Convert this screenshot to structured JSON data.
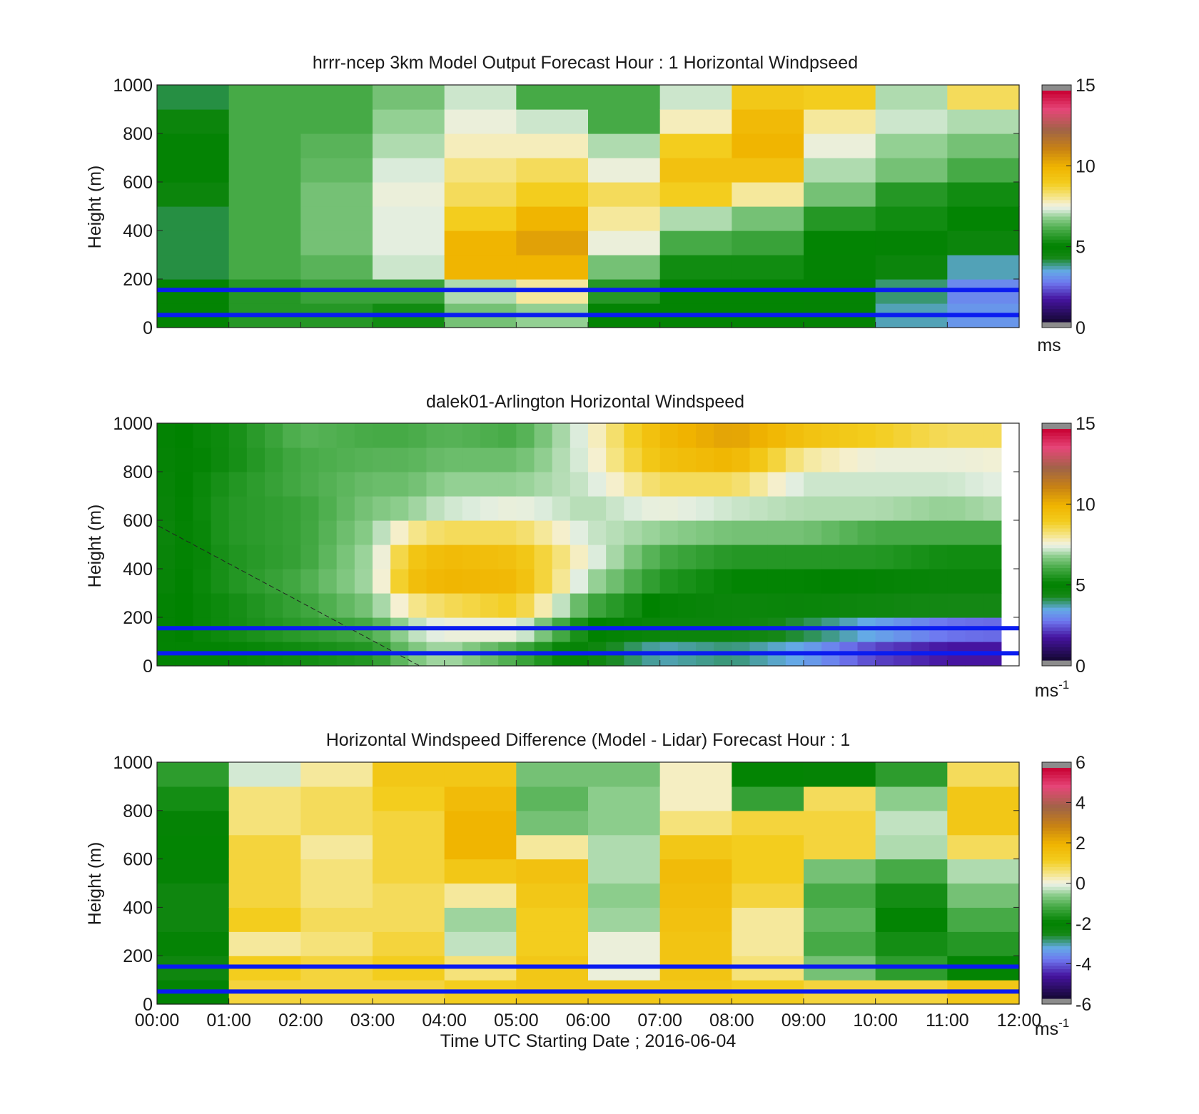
{
  "chart_data": [
    {
      "type": "heatmap",
      "title": "hrrr-ncep 3km Model Output   Forecast Hour : 1 Horizontal Windpseed",
      "ylabel": "Height (m)",
      "ylim": [
        0,
        1000
      ],
      "yticks": [
        "0",
        "200",
        "400",
        "600",
        "800",
        "1000"
      ],
      "x_ticks_shown": false,
      "colorbar": {
        "ticks": [
          "0",
          "5",
          "10",
          "15"
        ],
        "range": [
          0,
          15
        ],
        "unit": "ms",
        "unit_sup": ""
      },
      "reference_lines_m": [
        155,
        52
      ],
      "time_bins": 12,
      "height_bins": 10,
      "values": [
        [
          5.0,
          5.0,
          4.0,
          4.0,
          4.0,
          4.5,
          4.8,
          4.8,
          4.5,
          4.0
        ],
        [
          5.5,
          5.5,
          6.0,
          6.0,
          6.0,
          6.0,
          6.0,
          6.0,
          6.0,
          6.0
        ],
        [
          5.5,
          5.8,
          6.2,
          6.5,
          6.5,
          6.5,
          6.3,
          6.2,
          6.0,
          6.0
        ],
        [
          5.2,
          5.8,
          7.2,
          7.4,
          7.4,
          7.5,
          7.3,
          7.0,
          6.8,
          6.5
        ],
        [
          6.5,
          7.0,
          10.0,
          10.0,
          9.0,
          8.5,
          8.2,
          7.8,
          7.5,
          7.2
        ],
        [
          6.8,
          8.0,
          10.0,
          10.5,
          10.0,
          9.0,
          8.5,
          7.8,
          7.2,
          6.0
        ],
        [
          5.0,
          5.5,
          6.5,
          7.5,
          8.0,
          8.5,
          7.5,
          7.0,
          6.0,
          6.0
        ],
        [
          5.0,
          5.0,
          5.2,
          6.0,
          7.0,
          9.0,
          9.5,
          9.0,
          7.8,
          7.2
        ],
        [
          5.0,
          5.0,
          5.2,
          5.8,
          6.5,
          8.0,
          9.5,
          10.0,
          9.8,
          9.2
        ],
        [
          4.8,
          4.8,
          4.8,
          5.0,
          5.5,
          6.5,
          7.0,
          7.5,
          8.0,
          9.0
        ],
        [
          3.5,
          3.8,
          4.5,
          4.8,
          5.2,
          5.5,
          6.5,
          6.8,
          7.2,
          7.0
        ],
        [
          3.0,
          2.8,
          3.5,
          4.5,
          5.0,
          5.2,
          6.0,
          6.5,
          7.0,
          8.5
        ]
      ]
    },
    {
      "type": "heatmap",
      "title": "dalek01-Arlington  Horizontal Windspeed",
      "ylabel": "Height (m)",
      "ylim": [
        0,
        1000
      ],
      "yticks": [
        "0",
        "200",
        "400",
        "600",
        "800",
        "1000"
      ],
      "x_ticks_shown": false,
      "colorbar": {
        "ticks": [
          "0",
          "5",
          "10",
          "15"
        ],
        "range": [
          0,
          15
        ],
        "unit": "ms",
        "unit_sup": "-1"
      },
      "reference_lines_m": [
        155,
        52
      ],
      "time_bins": 47,
      "height_bins": 10,
      "control_hours": [
        0,
        1,
        2,
        3,
        3.5,
        4,
        5,
        6,
        7,
        8,
        9,
        10,
        11,
        11.75
      ],
      "control_values": [
        [
          5.0,
          4.8,
          4.8,
          4.6,
          4.5,
          4.4,
          4.5,
          4.6,
          4.7,
          4.8
        ],
        [
          5.0,
          5.2,
          5.2,
          5.4,
          5.4,
          5.5,
          5.5,
          5.4,
          5.2,
          5.2
        ],
        [
          5.2,
          5.6,
          5.8,
          6.0,
          5.8,
          5.8,
          5.8,
          6.0,
          6.0,
          6.2
        ],
        [
          5.5,
          6.0,
          6.6,
          7.0,
          7.0,
          6.8,
          6.6,
          6.4,
          6.2,
          6.0
        ],
        [
          6.5,
          7.0,
          8.0,
          9.5,
          9.2,
          8.0,
          6.8,
          6.4,
          6.2,
          6.0
        ],
        [
          7.0,
          7.5,
          8.5,
          10.0,
          9.8,
          8.5,
          7.2,
          6.8,
          6.4,
          6.2
        ],
        [
          6.0,
          7.5,
          9.0,
          9.8,
          9.5,
          8.5,
          7.5,
          6.8,
          6.4,
          6.0
        ],
        [
          4.5,
          5.0,
          6.0,
          7.0,
          7.5,
          7.2,
          7.0,
          7.2,
          7.4,
          7.5
        ],
        [
          3.5,
          4.5,
          4.8,
          5.5,
          6.0,
          6.8,
          7.5,
          8.5,
          9.5,
          9.8
        ],
        [
          3.8,
          4.5,
          4.5,
          5.0,
          5.5,
          6.5,
          7.2,
          8.5,
          10.0,
          10.5
        ],
        [
          3.2,
          4.0,
          4.6,
          5.0,
          5.5,
          6.5,
          7.0,
          7.2,
          8.0,
          9.5
        ],
        [
          2.0,
          3.2,
          4.4,
          4.8,
          5.5,
          6.0,
          7.0,
          7.2,
          7.5,
          9.0
        ],
        [
          1.5,
          2.5,
          4.2,
          4.6,
          5.2,
          6.0,
          6.8,
          7.2,
          7.5,
          8.5
        ],
        [
          1.5,
          2.4,
          4.2,
          4.6,
          5.2,
          6.0,
          7.0,
          7.4,
          7.6,
          8.5
        ]
      ]
    },
    {
      "type": "heatmap",
      "title": "Horizontal Windspeed Difference (Model - Lidar) Forecast Hour : 1",
      "xlabel": "Time UTC  Starting Date ; 2016-06-04",
      "ylabel": "Height (m)",
      "ylim": [
        0,
        1000
      ],
      "yticks": [
        "0",
        "200",
        "400",
        "600",
        "800",
        "1000"
      ],
      "xticks": [
        "00:00",
        "01:00",
        "02:00",
        "03:00",
        "04:00",
        "05:00",
        "06:00",
        "07:00",
        "08:00",
        "09:00",
        "10:00",
        "11:00",
        "12:00"
      ],
      "colorbar": {
        "ticks": [
          "-6",
          "-4",
          "-2",
          "0",
          "2",
          "4",
          "6"
        ],
        "range": [
          -6,
          6
        ],
        "unit": "ms",
        "unit_sup": "-1"
      },
      "reference_lines_m": [
        155,
        52
      ],
      "time_bins": 12,
      "height_bins": 10,
      "values": [
        [
          -2.0,
          -2.5,
          -2.2,
          -2.5,
          -2.5,
          -2.2,
          -2.0,
          -2.2,
          -1.8,
          -1.5
        ],
        [
          1.0,
          1.2,
          0.4,
          1.2,
          1.0,
          1.0,
          1.0,
          0.6,
          0.6,
          -0.2
        ],
        [
          1.0,
          1.0,
          0.6,
          0.8,
          0.6,
          0.6,
          0.4,
          0.8,
          0.8,
          0.4
        ],
        [
          1.0,
          1.2,
          1.0,
          0.8,
          0.8,
          1.0,
          1.0,
          1.0,
          1.2,
          1.4
        ],
        [
          1.2,
          0.6,
          -0.3,
          -0.5,
          0.4,
          1.4,
          2.0,
          2.0,
          1.8,
          1.4
        ],
        [
          1.4,
          1.4,
          1.2,
          1.2,
          1.4,
          1.6,
          0.4,
          -0.8,
          -1.0,
          -0.8
        ],
        [
          1.4,
          0.0,
          0.0,
          -0.5,
          -0.6,
          -0.4,
          -0.4,
          -0.6,
          -0.6,
          -0.8
        ],
        [
          1.4,
          1.5,
          1.5,
          1.6,
          1.7,
          1.8,
          1.4,
          0.6,
          0.2,
          0.2
        ],
        [
          1.2,
          0.6,
          0.4,
          0.4,
          1.0,
          1.2,
          1.2,
          1.0,
          -1.4,
          -2.0
        ],
        [
          1.0,
          -0.8,
          -1.2,
          -1.0,
          -1.2,
          -0.8,
          1.0,
          1.0,
          0.8,
          -2.2
        ],
        [
          1.0,
          -1.5,
          -1.8,
          -2.0,
          -1.8,
          -1.2,
          -0.4,
          -0.3,
          -0.6,
          -1.5
        ],
        [
          1.4,
          -2.0,
          -1.6,
          -1.2,
          -0.8,
          -0.4,
          0.8,
          1.4,
          1.4,
          0.8
        ]
      ]
    }
  ]
}
